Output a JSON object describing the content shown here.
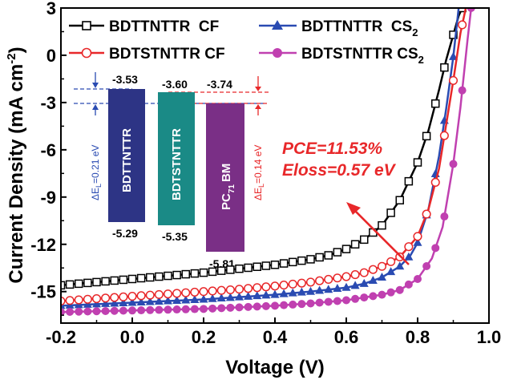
{
  "chart_data": {
    "type": "line",
    "xlabel": "Voltage (V)",
    "ylabel": "Current Density (mA cm",
    "ylabel_sup": "-2",
    "ylabel_end": ")",
    "xlim": [
      -0.2,
      1.0
    ],
    "ylim": [
      -17,
      3
    ],
    "xticks": [
      "-0.2",
      "0.0",
      "0.2",
      "0.4",
      "0.6",
      "0.8",
      "1.0"
    ],
    "yticks": [
      "3",
      "0",
      "-3",
      "-6",
      "-9",
      "-12",
      "-15"
    ],
    "grid": false,
    "legend_position": "top",
    "series": [
      {
        "name_main": "BDTTNTTR  CF",
        "name_sub": "",
        "color": "#000000",
        "marker": "open-square",
        "x": [
          -0.2,
          -0.1,
          0.0,
          0.1,
          0.2,
          0.3,
          0.4,
          0.5,
          0.55,
          0.6,
          0.65,
          0.7,
          0.75,
          0.8,
          0.83,
          0.86,
          0.88,
          0.9,
          0.915,
          0.925
        ],
        "y": [
          -14.6,
          -14.4,
          -14.2,
          -14.0,
          -13.8,
          -13.55,
          -13.3,
          -12.95,
          -12.7,
          -12.3,
          -11.7,
          -10.8,
          -9.2,
          -6.8,
          -4.8,
          -2.2,
          -0.3,
          1.3,
          2.5,
          3.0
        ]
      },
      {
        "name_main": "BDTTNTTR  CS",
        "name_sub": "2",
        "color": "#2a4bb2",
        "marker": "filled-triangle",
        "x": [
          -0.2,
          -0.1,
          0.0,
          0.1,
          0.2,
          0.3,
          0.4,
          0.5,
          0.6,
          0.65,
          0.7,
          0.75,
          0.78,
          0.8,
          0.83,
          0.86,
          0.88,
          0.9,
          0.915
        ],
        "y": [
          -15.9,
          -15.8,
          -15.7,
          -15.6,
          -15.5,
          -15.35,
          -15.2,
          -15.0,
          -14.75,
          -14.5,
          -14.1,
          -13.4,
          -12.7,
          -11.9,
          -9.8,
          -6.4,
          -3.4,
          -0.1,
          3.0
        ]
      },
      {
        "name_main": "BDTSTNTTR CF",
        "name_sub": "",
        "color": "#e8282a",
        "marker": "open-circle",
        "x": [
          -0.2,
          -0.1,
          0.0,
          0.1,
          0.2,
          0.3,
          0.4,
          0.5,
          0.6,
          0.65,
          0.7,
          0.75,
          0.8,
          0.83,
          0.86,
          0.88,
          0.9,
          0.92,
          0.935
        ],
        "y": [
          -15.6,
          -15.45,
          -15.3,
          -15.15,
          -15.0,
          -14.85,
          -14.65,
          -14.4,
          -14.05,
          -13.8,
          -13.4,
          -12.8,
          -11.5,
          -9.8,
          -7.2,
          -4.4,
          -1.6,
          1.4,
          3.0
        ]
      },
      {
        "name_main": "BDTSTNTTR CS",
        "name_sub": "2",
        "color": "#c040b0",
        "marker": "filled-circle",
        "x": [
          -0.2,
          -0.1,
          0.0,
          0.1,
          0.2,
          0.3,
          0.4,
          0.5,
          0.6,
          0.7,
          0.75,
          0.8,
          0.84,
          0.87,
          0.9,
          0.92,
          0.94,
          0.95
        ],
        "y": [
          -16.3,
          -16.25,
          -16.2,
          -16.15,
          -16.1,
          -16.0,
          -15.9,
          -15.75,
          -15.55,
          -15.2,
          -14.9,
          -14.2,
          -12.9,
          -10.9,
          -6.9,
          -3.3,
          1.0,
          3.0
        ]
      }
    ],
    "inset": {
      "bars": [
        {
          "label": "BDTTNTTR",
          "sub": "",
          "label_end": "",
          "lumo": "-3.53",
          "homo": "-5.29",
          "color": "#2d3485"
        },
        {
          "label": "BDTSTNTTR",
          "sub": "",
          "label_end": "",
          "lumo": "-3.60",
          "homo": "-5.35",
          "color": "#1a8a86"
        },
        {
          "label": "PC",
          "sub": "71",
          "label_end": "BM",
          "lumo": "-3.74",
          "homo": "-5.81",
          "color": "#7a2f86"
        }
      ],
      "offsets": [
        {
          "prefix": "ΔE",
          "sub": "L",
          "value": "=0.21 eV",
          "color": "#2a4bb2"
        },
        {
          "prefix": "ΔE",
          "sub": "L",
          "value": "=0.14 eV",
          "color": "#e8282a"
        }
      ]
    },
    "annotation": {
      "line1": "PCE=11.53%",
      "line2": "Eloss=0.57 eV",
      "color": "#e8282a"
    }
  }
}
